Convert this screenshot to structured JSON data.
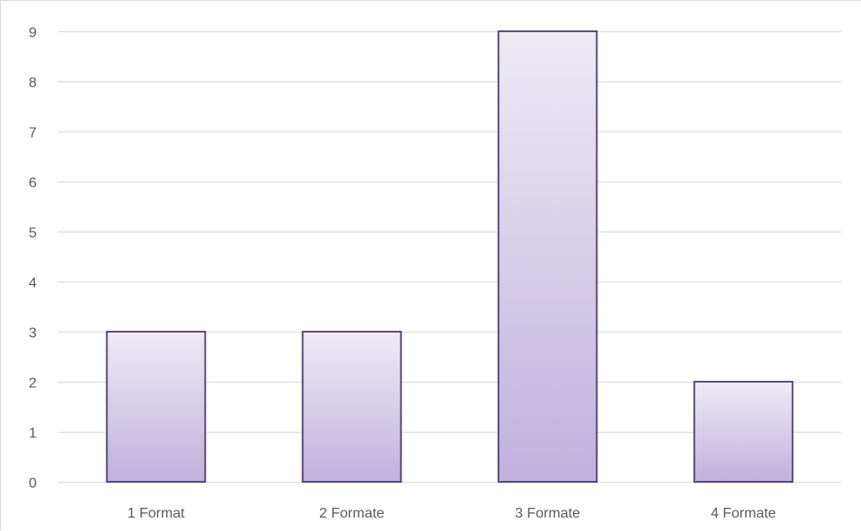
{
  "chart_data": {
    "type": "bar",
    "categories": [
      "1 Format",
      "2 Formate",
      "3 Formate",
      "4 Formate"
    ],
    "values": [
      3,
      3,
      9,
      2
    ],
    "title": "",
    "xlabel": "",
    "ylabel": "",
    "ylim": [
      0,
      9
    ],
    "yticks": [
      "0",
      "1",
      "2",
      "3",
      "4",
      "5",
      "6",
      "7",
      "8",
      "9"
    ],
    "grid": true,
    "legend": "none",
    "colors": {
      "bar_top": "#eeebf5",
      "bar_bottom": "#bfb1dc",
      "bar_border": "#4b3a6e",
      "grid": "#d9d9d9",
      "text": "#595959"
    }
  }
}
